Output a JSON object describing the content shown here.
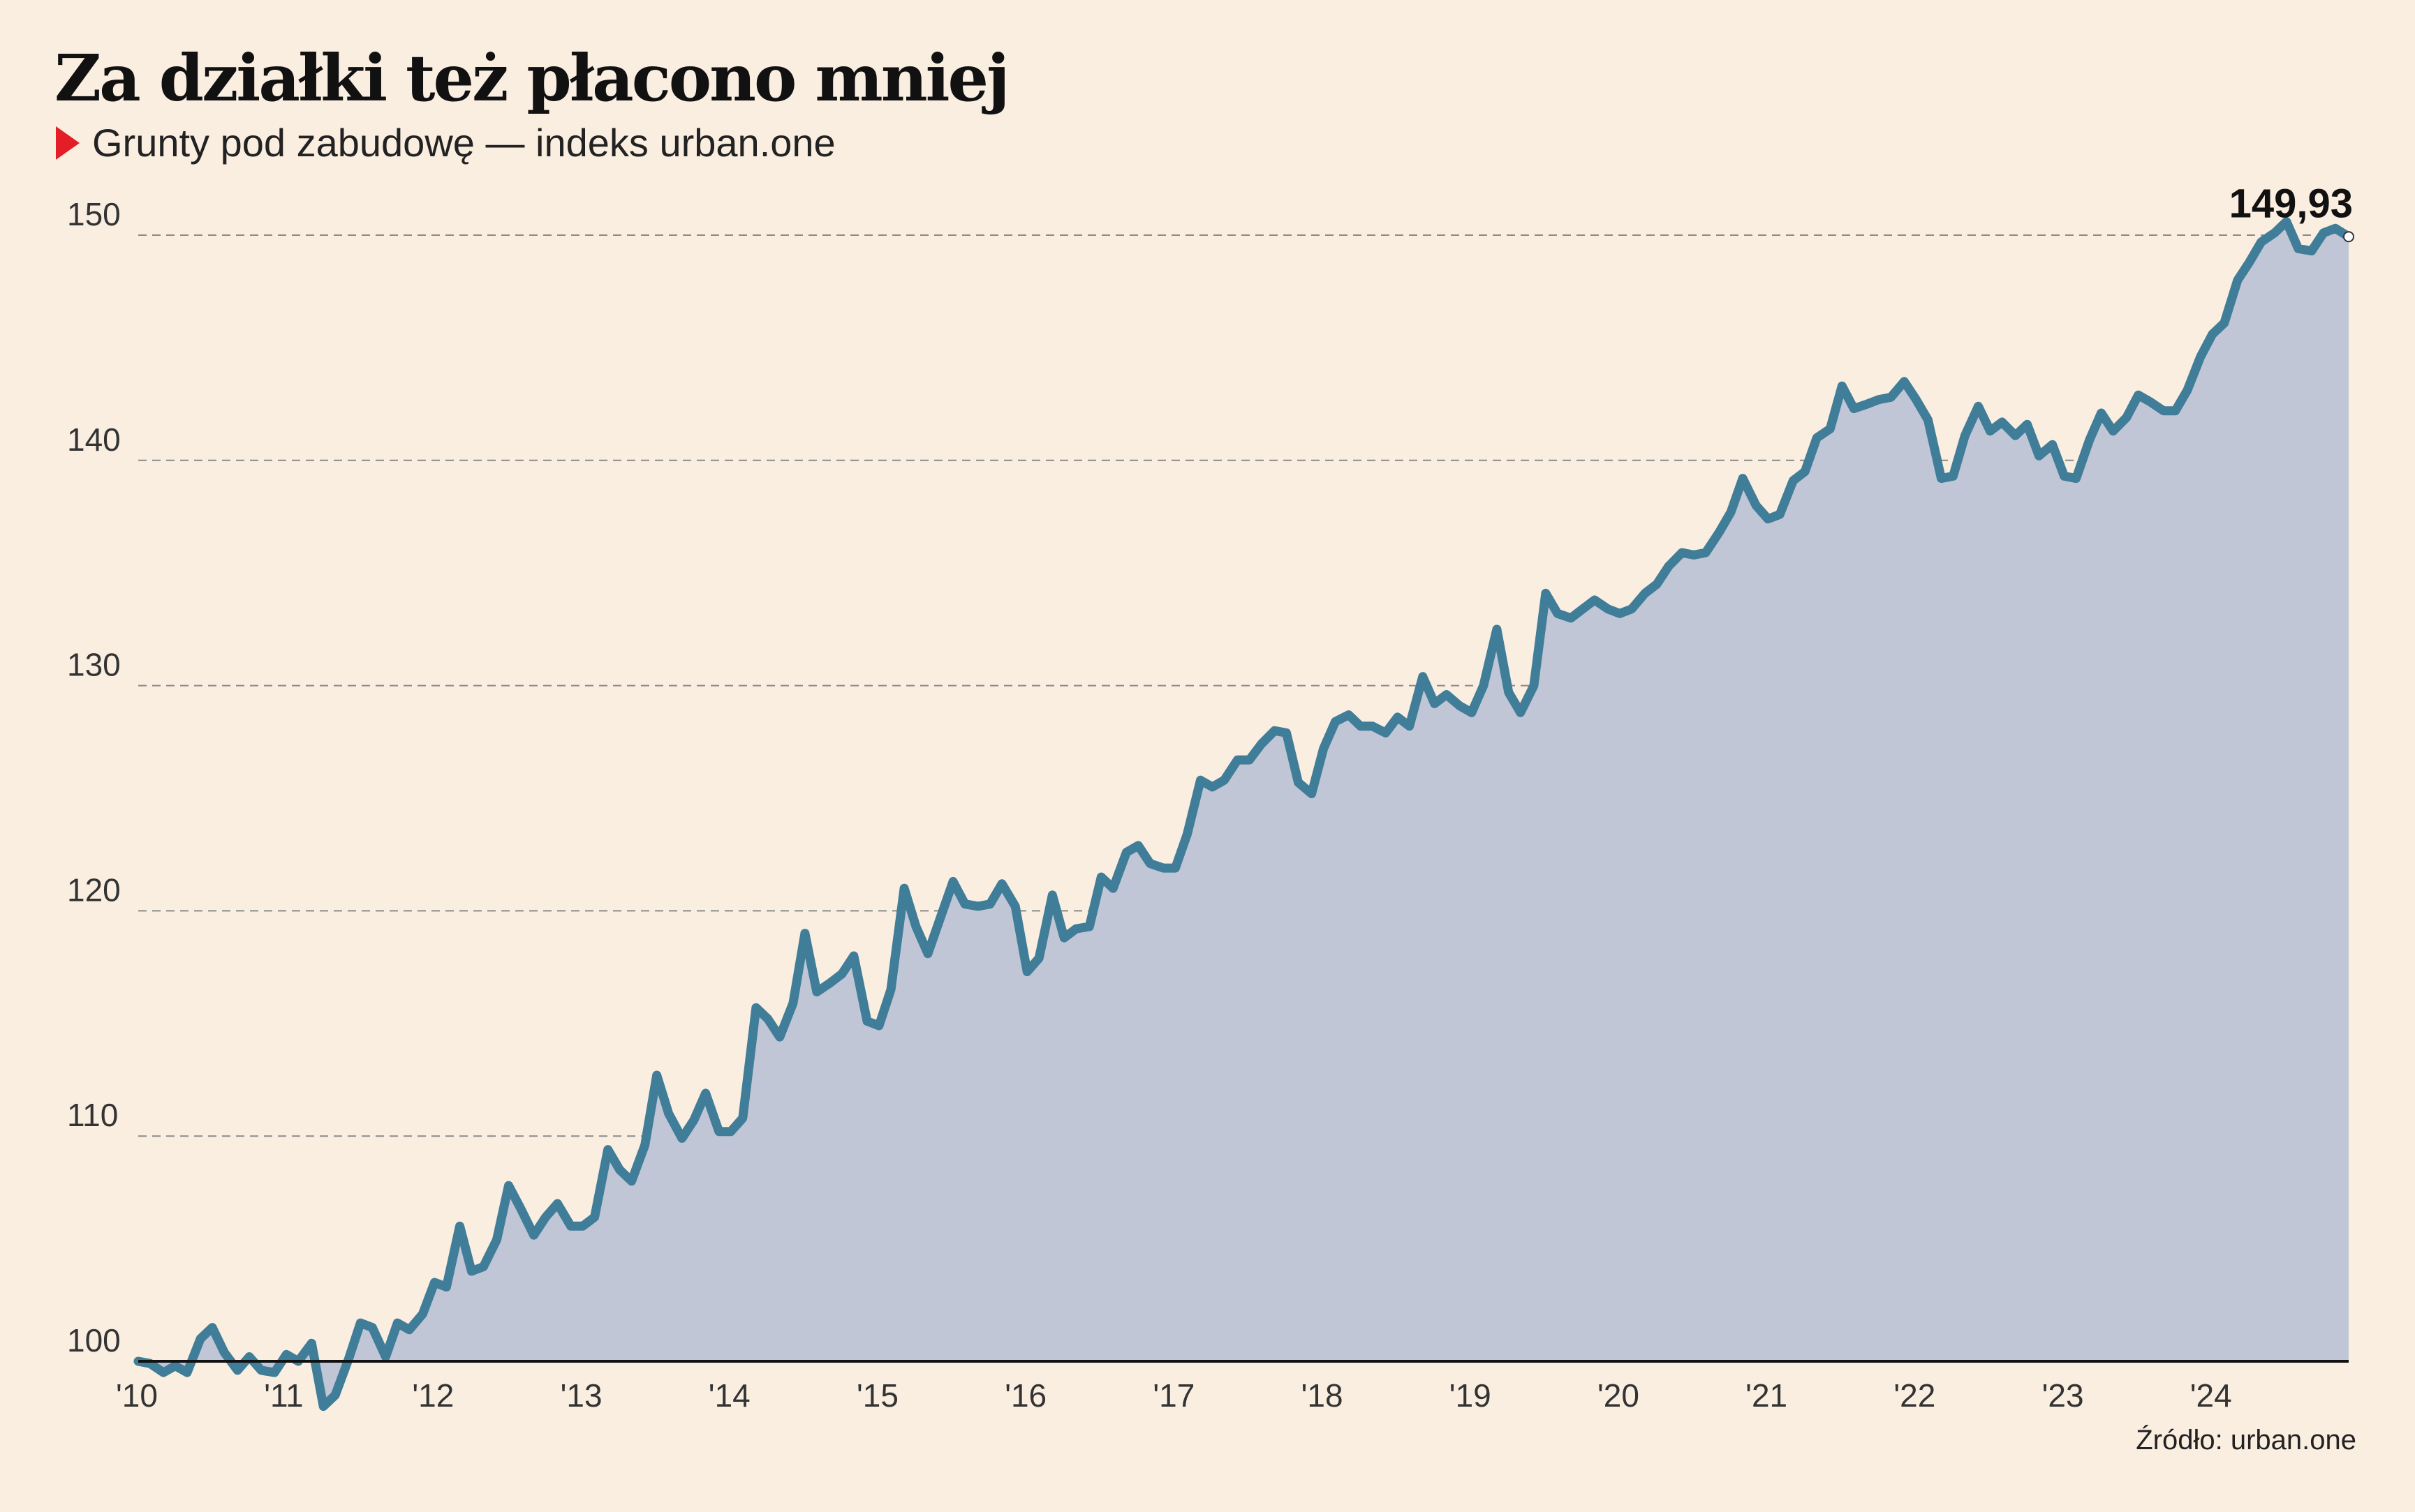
{
  "title": "Za działki też płacono mniej",
  "subtitle": "Grunty pod zabudowę — indeks urban.one",
  "source": "Źródło: urban.one",
  "colors": {
    "background": "#faeee1",
    "line": "#407d98",
    "area": "#c0c6d6",
    "marker": "#e41e26"
  },
  "chart_data": {
    "type": "area",
    "ylim": [
      100,
      150
    ],
    "yticks": [
      100,
      110,
      120,
      130,
      140,
      150
    ],
    "ytick_labels": [
      "100",
      "110",
      "120",
      "130",
      "140",
      "150"
    ],
    "xlim": [
      2010,
      2024.92
    ],
    "xticks": [
      2010,
      2011,
      2012,
      2013,
      2014,
      2015,
      2016,
      2017,
      2018,
      2019,
      2020,
      2021,
      2022,
      2023,
      2024
    ],
    "xtick_labels": [
      "'10",
      "'11",
      "'12",
      "'13",
      "'14",
      "'15",
      "'16",
      "'17",
      "'18",
      "'19",
      "'20",
      "'21",
      "'22",
      "'23",
      "'24"
    ],
    "grid": "horizontal dashed",
    "end_label": "149,93",
    "x": [
      2010.0,
      2010.08,
      2010.17,
      2010.25,
      2010.33,
      2010.42,
      2010.5,
      2010.58,
      2010.67,
      2010.75,
      2010.83,
      2010.92,
      2011.0,
      2011.08,
      2011.17,
      2011.25,
      2011.33,
      2011.42,
      2011.5,
      2011.58,
      2011.67,
      2011.75,
      2011.83,
      2011.92,
      2012.0,
      2012.08,
      2012.17,
      2012.25,
      2012.33,
      2012.42,
      2012.5,
      2012.58,
      2012.67,
      2012.75,
      2012.83,
      2012.92,
      2013.0,
      2013.08,
      2013.17,
      2013.25,
      2013.33,
      2013.42,
      2013.5,
      2013.58,
      2013.67,
      2013.75,
      2013.83,
      2013.92,
      2014.0,
      2014.08,
      2014.17,
      2014.25,
      2014.33,
      2014.42,
      2014.5,
      2014.58,
      2014.67,
      2014.75,
      2014.83,
      2014.92,
      2015.0,
      2015.08,
      2015.17,
      2015.25,
      2015.33,
      2015.42,
      2015.5,
      2015.58,
      2015.67,
      2015.75,
      2015.83,
      2015.92,
      2016.0,
      2016.08,
      2016.17,
      2016.25,
      2016.33,
      2016.42,
      2016.5,
      2016.58,
      2016.67,
      2016.75,
      2016.83,
      2016.92,
      2017.0,
      2017.08,
      2017.17,
      2017.25,
      2017.33,
      2017.42,
      2017.5,
      2017.58,
      2017.67,
      2017.75,
      2017.83,
      2017.92,
      2018.0,
      2018.08,
      2018.17,
      2018.25,
      2018.33,
      2018.42,
      2018.5,
      2018.58,
      2018.67,
      2018.75,
      2018.83,
      2018.92,
      2019.0,
      2019.08,
      2019.17,
      2019.25,
      2019.33,
      2019.42,
      2019.5,
      2019.58,
      2019.67,
      2019.75,
      2019.83,
      2019.92,
      2020.0,
      2020.08,
      2020.17,
      2020.25,
      2020.33,
      2020.42,
      2020.5,
      2020.58,
      2020.67,
      2020.75,
      2020.83,
      2020.92,
      2021.0,
      2021.08,
      2021.17,
      2021.25,
      2021.33,
      2021.42,
      2021.5,
      2021.58,
      2021.67,
      2021.75,
      2021.83,
      2021.92,
      2022.0,
      2022.08,
      2022.17,
      2022.25,
      2022.33,
      2022.42,
      2022.5,
      2022.58,
      2022.67,
      2022.75,
      2022.83,
      2022.92,
      2023.0,
      2023.08,
      2023.17,
      2023.25,
      2023.33,
      2023.42,
      2023.5,
      2023.58,
      2023.67,
      2023.75,
      2023.83,
      2023.92,
      2024.0,
      2024.08,
      2024.17,
      2024.25,
      2024.33,
      2024.42,
      2024.5,
      2024.58,
      2024.67,
      2024.75,
      2024.83,
      2024.92
    ],
    "values": [
      100.0,
      99.9,
      99.5,
      99.8,
      99.5,
      101.0,
      101.5,
      100.4,
      99.6,
      100.2,
      99.6,
      99.5,
      100.3,
      100.0,
      100.8,
      98.0,
      98.5,
      100.1,
      101.7,
      101.5,
      100.2,
      101.7,
      101.4,
      102.1,
      103.5,
      103.3,
      106.0,
      104.0,
      104.2,
      105.4,
      107.8,
      106.8,
      105.6,
      106.4,
      107.0,
      106.0,
      106.0,
      106.4,
      109.4,
      108.5,
      108.0,
      109.6,
      112.7,
      111.0,
      109.9,
      110.7,
      111.9,
      110.2,
      110.2,
      110.8,
      115.7,
      115.2,
      114.4,
      115.9,
      119.0,
      116.4,
      116.8,
      117.2,
      118.0,
      115.1,
      114.9,
      116.5,
      121.0,
      119.3,
      118.1,
      119.8,
      121.3,
      120.3,
      120.2,
      120.3,
      121.2,
      120.2,
      117.3,
      117.9,
      120.7,
      118.8,
      119.2,
      119.3,
      121.5,
      121.0,
      122.6,
      122.9,
      122.1,
      121.9,
      121.9,
      123.4,
      125.8,
      125.5,
      125.8,
      126.7,
      126.7,
      127.4,
      128.0,
      127.9,
      125.7,
      125.2,
      127.2,
      128.4,
      128.7,
      128.2,
      128.2,
      127.9,
      128.6,
      128.2,
      130.4,
      129.2,
      129.6,
      129.1,
      128.8,
      130.0,
      132.5,
      129.7,
      128.8,
      130.0,
      134.1,
      133.2,
      133.0,
      133.4,
      133.8,
      133.4,
      133.2,
      133.4,
      134.1,
      134.5,
      135.3,
      135.9,
      135.8,
      135.9,
      136.8,
      137.7,
      139.2,
      138.0,
      137.4,
      137.6,
      139.1,
      139.5,
      141.0,
      141.4,
      143.3,
      142.3,
      142.5,
      142.7,
      142.8,
      143.5,
      142.7,
      141.8,
      139.2,
      139.3,
      141.1,
      142.4,
      141.3,
      141.7,
      141.1,
      141.6,
      140.2,
      140.7,
      139.3,
      139.2,
      140.9,
      142.1,
      141.3,
      141.9,
      142.9,
      142.6,
      142.2,
      142.2,
      143.1,
      144.6,
      145.6,
      146.1,
      148.0,
      148.8,
      149.7,
      150.1,
      150.6,
      149.4,
      149.3,
      150.1,
      150.3,
      149.93
    ]
  }
}
